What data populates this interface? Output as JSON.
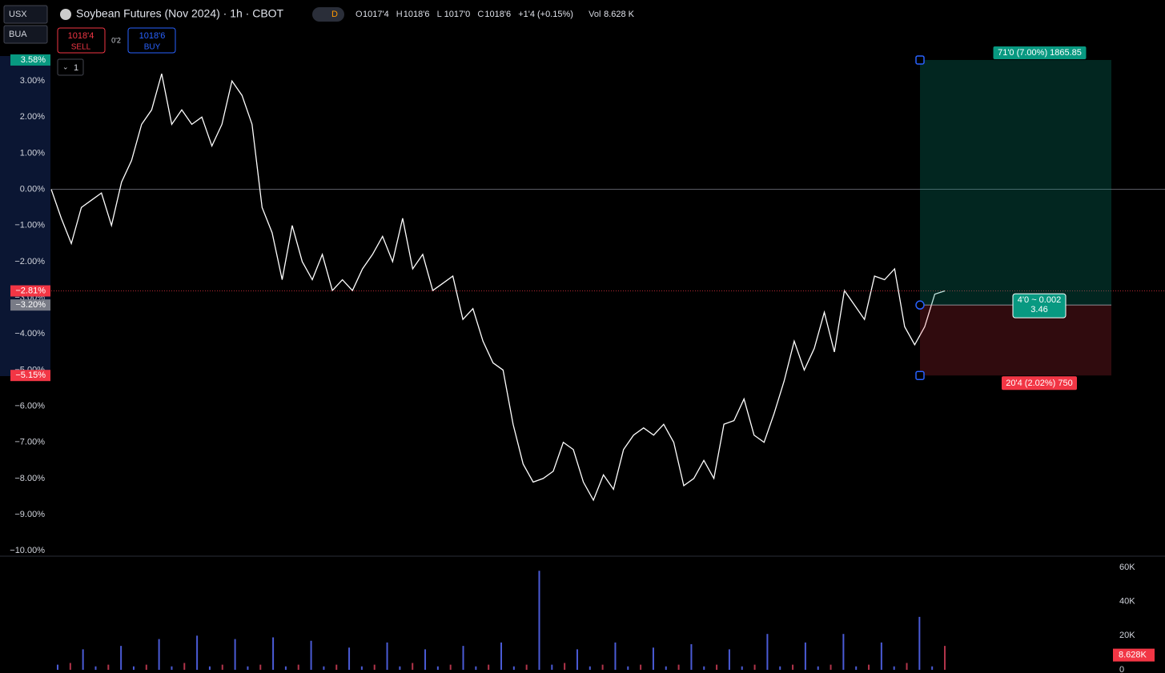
{
  "toolbar": {
    "currency": "USX",
    "unit": "BUA",
    "collapse": "1"
  },
  "header": {
    "title": "Soybean Futures (Nov 2024) · 1h · CBOT",
    "interval_badge": "D",
    "ohlc": [
      {
        "key": "O",
        "value": "1017'4"
      },
      {
        "key": "H",
        "value": "1018'6"
      },
      {
        "key": "L",
        "value": "1017'0"
      },
      {
        "key": "C",
        "value": "1018'6"
      }
    ],
    "change": "+1'4 (+0.15%)",
    "vol_key": "Vol",
    "vol_value": "8.628 K",
    "sell_price": "1018'4",
    "sell": "SELL",
    "spread": "0'2",
    "buy_price": "1018'6",
    "buy": "BUY"
  },
  "chart_data": [
    {
      "type": "line",
      "color": "#ffffff",
      "values": [
        0,
        -0.8,
        -1.5,
        -0.5,
        -0.3,
        -0.1,
        -1.0,
        0.2,
        0.8,
        1.8,
        2.2,
        3.2,
        1.8,
        2.2,
        1.8,
        2.0,
        1.2,
        1.8,
        3.0,
        2.6,
        1.8,
        -0.5,
        -1.2,
        -2.5,
        -1.0,
        -2.0,
        -2.5,
        -1.8,
        -2.8,
        -2.5,
        -2.8,
        -2.2,
        -1.8,
        -1.3,
        -2.0,
        -0.8,
        -2.2,
        -1.8,
        -2.8,
        -2.6,
        -2.4,
        -3.6,
        -3.3,
        -4.2,
        -4.8,
        -5.0,
        -6.5,
        -7.6,
        -8.1,
        -8.0,
        -7.8,
        -7.0,
        -7.2,
        -8.1,
        -8.6,
        -7.9,
        -8.3,
        -7.2,
        -6.8,
        -6.6,
        -6.8,
        -6.5,
        -7.0,
        -8.2,
        -8.0,
        -7.5,
        -8.0,
        -6.5,
        -6.4,
        -5.8,
        -6.8,
        -7.0,
        -6.2,
        -5.3,
        -4.2,
        -5.0,
        -4.4,
        -3.4,
        -4.5,
        -2.8,
        -3.2,
        -3.6,
        -2.4,
        -2.5,
        -2.2,
        -3.8,
        -4.3,
        -3.8,
        -2.9,
        -2.81
      ],
      "ylim": [
        -10.15,
        5.24
      ],
      "yticks": [
        {
          "value": 3,
          "label": "3.00%"
        },
        {
          "value": 2,
          "label": "2.00%"
        },
        {
          "value": 1,
          "label": "1.00%"
        },
        {
          "value": 0,
          "label": "0.00%"
        },
        {
          "value": -1,
          "label": "−1.00%"
        },
        {
          "value": -2,
          "label": "−2.00%"
        },
        {
          "value": -3,
          "label": "−3.00%"
        },
        {
          "value": -4,
          "label": "−4.00%"
        },
        {
          "value": -5,
          "label": "−5.00%"
        },
        {
          "value": -6,
          "label": "−6.00%"
        },
        {
          "value": -7,
          "label": "−7.00%"
        },
        {
          "value": -8,
          "label": "−8.00%"
        },
        {
          "value": -9,
          "label": "−9.00%"
        },
        {
          "value": -10,
          "label": "−10.00%"
        }
      ],
      "last_price": {
        "value": -2.81,
        "label": "−2.81%",
        "color": "#f23645"
      },
      "position": {
        "target": {
          "value": 3.58,
          "label": "3.58%",
          "color": "#089981"
        },
        "entry": {
          "value": -3.2,
          "label": "−3.20%",
          "color": "#787b86"
        },
        "stop": {
          "value": -5.15,
          "label": "−5.15%",
          "color": "#f23645"
        },
        "target_text": "71'0 (7.00%) 1865.85",
        "entry_text": "4'0 ~ 0.002",
        "entry_text_2": "3.46",
        "stop_text": "20'4 (2.02%) 750"
      }
    },
    {
      "type": "bar",
      "color": "#4a5bd6",
      "values": [
        3000,
        4000,
        12000,
        2000,
        3000,
        14000,
        2000,
        3000,
        18000,
        2000,
        4000,
        20000,
        2000,
        3000,
        18000,
        2000,
        3000,
        19000,
        2000,
        3000,
        17000,
        2000,
        3000,
        13000,
        2000,
        3000,
        16000,
        2000,
        4000,
        12000,
        2000,
        3000,
        14000,
        2000,
        3000,
        16000,
        2000,
        3000,
        58000,
        3000,
        4000,
        12000,
        2000,
        3000,
        16000,
        2000,
        3000,
        13000,
        2000,
        3000,
        15000,
        2000,
        3000,
        12000,
        2000,
        3000,
        21000,
        2000,
        3000,
        16000,
        2000,
        3000,
        21000,
        2000,
        3000,
        16000,
        2000,
        4000,
        31000,
        2000,
        14000
      ],
      "ylim": [
        0,
        60000
      ],
      "yticks": [
        {
          "value": 60000,
          "label": "60K"
        },
        {
          "value": 40000,
          "label": "40K"
        },
        {
          "value": 20000,
          "label": "20K"
        },
        0
      ],
      "last": {
        "value": 8628,
        "label": "8.628K",
        "color": "#f23645"
      }
    }
  ]
}
